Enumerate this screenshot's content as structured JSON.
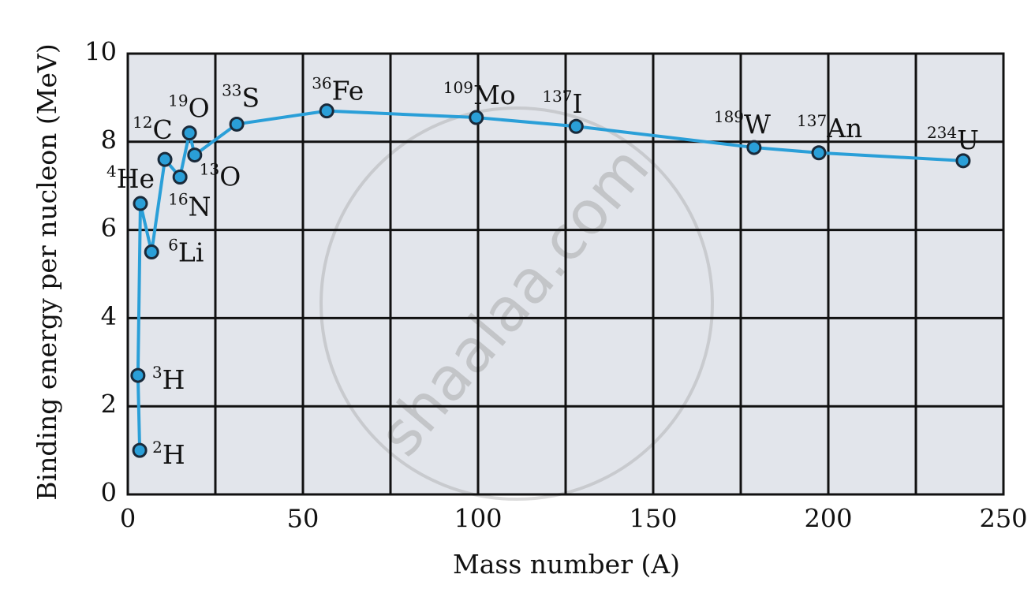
{
  "chart_data": {
    "type": "line",
    "xlabel": "Mass number (A)",
    "ylabel": "Binding energy per nucleon (MeV)",
    "watermark": "shaalaa.com",
    "x": [
      3.4,
      2.9,
      3.6,
      6.8,
      10.6,
      14.9,
      17.6,
      19.1,
      31.1,
      56.8,
      99.5,
      128,
      178.8,
      197.3,
      238.5
    ],
    "series": [
      {
        "name": "Binding energy per nucleon",
        "color": "#2a9fd8",
        "values": [
          1.0,
          2.7,
          6.6,
          5.5,
          7.6,
          7.2,
          8.2,
          7.7,
          8.4,
          8.7,
          8.55,
          8.35,
          7.87,
          7.75,
          7.57
        ]
      }
    ],
    "point_labels": [
      {
        "sup": "2",
        "text": "H"
      },
      {
        "sup": "3",
        "text": "H"
      },
      {
        "sup": "4",
        "text": "He"
      },
      {
        "sup": "6",
        "text": "Li"
      },
      {
        "sup": "12",
        "text": "C"
      },
      {
        "sup": "16",
        "text": "N"
      },
      {
        "sup": "19",
        "text": "O"
      },
      {
        "sup": "13",
        "text": "O"
      },
      {
        "sup": "33",
        "text": "S"
      },
      {
        "sup": "36",
        "text": "Fe"
      },
      {
        "sup": "109",
        "text": "Mo"
      },
      {
        "sup": "137",
        "text": "I"
      },
      {
        "sup": "189",
        "text": "W"
      },
      {
        "sup": "137",
        "text": "An"
      },
      {
        "sup": "234",
        "text": "U"
      }
    ],
    "xlim": [
      0,
      250
    ],
    "ylim": [
      0,
      10
    ],
    "xticks": [
      0,
      50,
      100,
      150,
      200,
      250
    ],
    "yticks": [
      0,
      2,
      4,
      6,
      8,
      10
    ],
    "xgrid": [
      0,
      25,
      50,
      75,
      100,
      125,
      150,
      175,
      200,
      225,
      250
    ],
    "grid": true
  }
}
